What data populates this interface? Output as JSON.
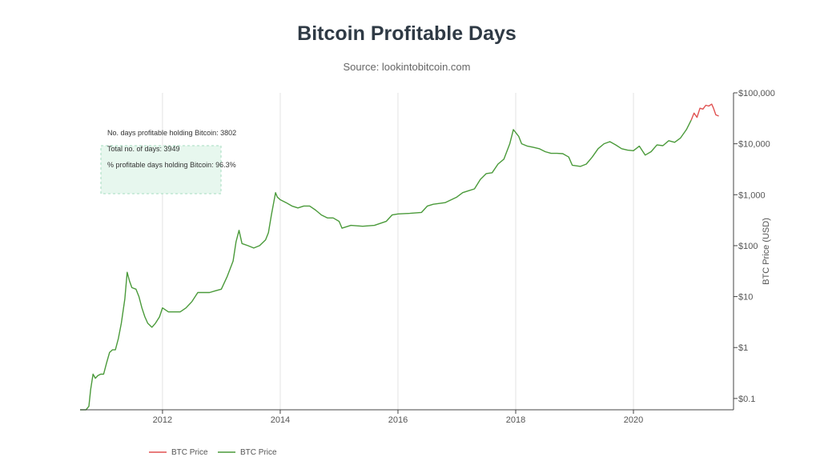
{
  "chart_data": {
    "type": "line",
    "title": "Bitcoin Profitable Days",
    "subtitle": "Source: lookintobitcoin.com",
    "ylabel": "BTC Price (USD)",
    "xlabel": "",
    "yscale": "log",
    "ylim": [
      0.06,
      100000
    ],
    "xlim": [
      2010.6,
      2021.7
    ],
    "x_ticks": [
      {
        "value": 2012,
        "label": "2012"
      },
      {
        "value": 2014,
        "label": "2014"
      },
      {
        "value": 2016,
        "label": "2016"
      },
      {
        "value": 2018,
        "label": "2018"
      },
      {
        "value": 2020,
        "label": "2020"
      }
    ],
    "y_ticks": [
      {
        "value": 0.1,
        "label": "$0.1"
      },
      {
        "value": 1,
        "label": "$1"
      },
      {
        "value": 10,
        "label": "$10"
      },
      {
        "value": 100,
        "label": "$100"
      },
      {
        "value": 1000,
        "label": "$1,000"
      },
      {
        "value": 10000,
        "label": "$10,000"
      },
      {
        "value": 100000,
        "label": "$100,000"
      }
    ],
    "annotations": [
      "No. days profitable holding Bitcoin: 3802",
      "Total no. of days: 3949",
      "% profitable days holding Bitcoin: 96.3%"
    ],
    "legend": {
      "position": "bottom-left",
      "entries": [
        {
          "name": "BTC Price",
          "color": "#e05050"
        },
        {
          "name": "BTC Price",
          "color": "#4a9a3a"
        }
      ]
    },
    "series": [
      {
        "name": "BTC Price",
        "color": "#4a9a3a",
        "x": [
          2010.6,
          2010.64,
          2010.7,
          2010.75,
          2010.78,
          2010.82,
          2010.86,
          2010.9,
          2010.95,
          2011.0,
          2011.05,
          2011.1,
          2011.15,
          2011.2,
          2011.25,
          2011.3,
          2011.36,
          2011.4,
          2011.44,
          2011.48,
          2011.55,
          2011.6,
          2011.65,
          2011.7,
          2011.75,
          2011.82,
          2011.88,
          2011.95,
          2012.0,
          2012.1,
          2012.2,
          2012.3,
          2012.4,
          2012.5,
          2012.6,
          2012.7,
          2012.8,
          2012.9,
          2013.0,
          2013.1,
          2013.2,
          2013.25,
          2013.3,
          2013.35,
          2013.45,
          2013.55,
          2013.65,
          2013.75,
          2013.8,
          2013.85,
          2013.92,
          2013.95,
          2014.0,
          2014.1,
          2014.2,
          2014.3,
          2014.4,
          2014.5,
          2014.6,
          2014.7,
          2014.8,
          2014.9,
          2015.0,
          2015.05,
          2015.2,
          2015.4,
          2015.6,
          2015.8,
          2015.9,
          2016.0,
          2016.2,
          2016.4,
          2016.5,
          2016.6,
          2016.8,
          2017.0,
          2017.1,
          2017.2,
          2017.3,
          2017.4,
          2017.5,
          2017.6,
          2017.7,
          2017.8,
          2017.9,
          2017.96,
          2018.05,
          2018.1,
          2018.2,
          2018.3,
          2018.4,
          2018.5,
          2018.6,
          2018.7,
          2018.8,
          2018.9,
          2018.96,
          2019.1,
          2019.2,
          2019.3,
          2019.4,
          2019.5,
          2019.6,
          2019.7,
          2019.8,
          2019.9,
          2020.0,
          2020.1,
          2020.2,
          2020.3,
          2020.4,
          2020.5,
          2020.6,
          2020.7,
          2020.8,
          2020.9,
          2020.98
        ],
        "y": [
          0.06,
          0.06,
          0.06,
          0.07,
          0.15,
          0.3,
          0.25,
          0.28,
          0.3,
          0.3,
          0.5,
          0.8,
          0.9,
          0.9,
          1.5,
          3.0,
          9.0,
          30.0,
          20.0,
          15.0,
          14.0,
          10.0,
          6.0,
          4.0,
          3.0,
          2.5,
          3.0,
          4.0,
          6.0,
          5.0,
          5.0,
          5.0,
          6.0,
          8.0,
          12.0,
          12.0,
          12.0,
          13.0,
          14.0,
          25.0,
          50.0,
          120.0,
          200.0,
          110.0,
          100.0,
          90.0,
          100.0,
          130.0,
          180.0,
          400.0,
          1100.0,
          900.0,
          800.0,
          700.0,
          600.0,
          550.0,
          600.0,
          600.0,
          500.0,
          400.0,
          350.0,
          350.0,
          300.0,
          220.0,
          250.0,
          240.0,
          250.0,
          300.0,
          400.0,
          420.0,
          430.0,
          450.0,
          600.0,
          650.0,
          700.0,
          900.0,
          1100.0,
          1200.0,
          1300.0,
          2000.0,
          2600.0,
          2700.0,
          4000.0,
          5000.0,
          10000.0,
          19000.0,
          14000.0,
          10000.0,
          9000.0,
          8500.0,
          8000.0,
          7000.0,
          6500.0,
          6500.0,
          6400.0,
          5500.0,
          3800.0,
          3600.0,
          4000.0,
          5500.0,
          8000.0,
          10000.0,
          11000.0,
          9500.0,
          8000.0,
          7500.0,
          7300.0,
          9000.0,
          6000.0,
          7000.0,
          9500.0,
          9200.0,
          11500.0,
          10700.0,
          13000.0,
          19000.0,
          29000.0
        ]
      },
      {
        "name": "BTC Price",
        "color": "#e05050",
        "x": [
          2020.98,
          2021.03,
          2021.08,
          2021.13,
          2021.18,
          2021.23,
          2021.28,
          2021.33,
          2021.36,
          2021.4,
          2021.45
        ],
        "y": [
          29000.0,
          40000.0,
          33000.0,
          50000.0,
          48000.0,
          57000.0,
          55000.0,
          60000.0,
          50000.0,
          37000.0,
          35000.0
        ]
      }
    ]
  }
}
